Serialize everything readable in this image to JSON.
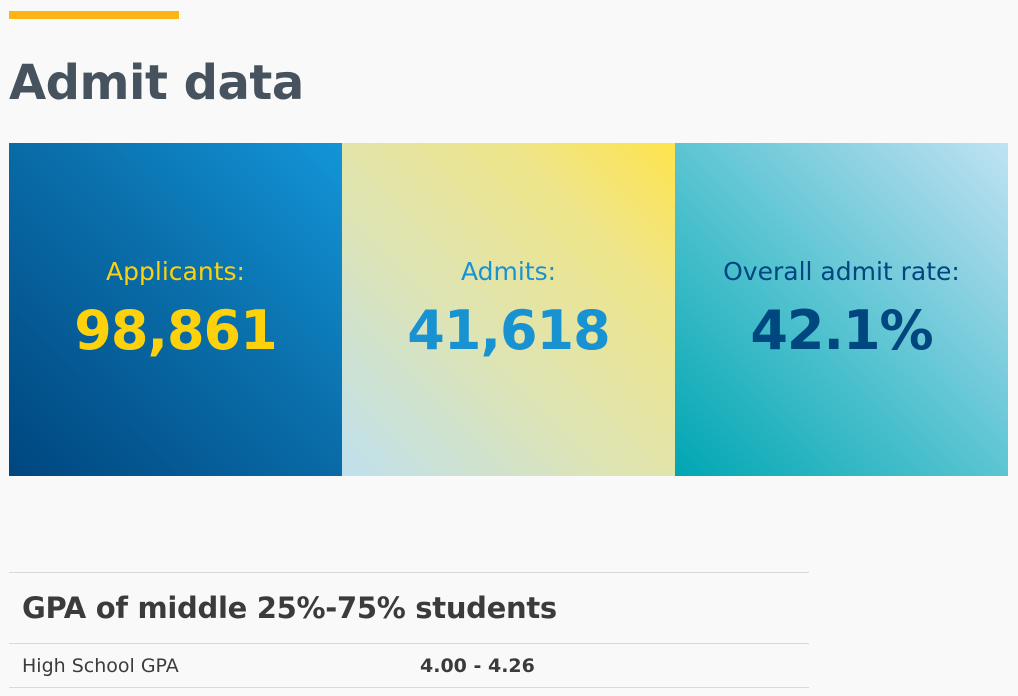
{
  "page": {
    "title": "Admit data"
  },
  "stats": [
    {
      "label": "Applicants:",
      "value": "98,861"
    },
    {
      "label": "Admits:",
      "value": "41,618"
    },
    {
      "label": "Overall admit rate:",
      "value": "42.1%"
    }
  ],
  "gpa_table": {
    "title": "GPA of middle 25%-75% students",
    "rows": [
      {
        "label": "High School GPA",
        "value": "4.00 - 4.26"
      }
    ]
  },
  "colors": {
    "accent": "#fdb515",
    "applicants_text": "#fdd20c",
    "admits_text": "#1892d1",
    "rate_text": "#00467f"
  }
}
